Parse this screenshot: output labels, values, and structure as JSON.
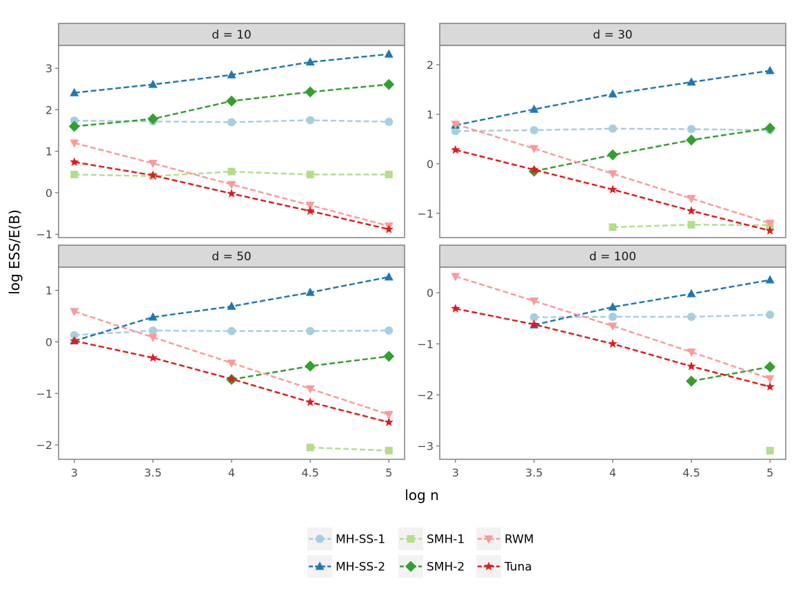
{
  "chart_data": {
    "type": "line",
    "xlabel": "log n",
    "ylabel": "log ESS/E(B)",
    "x": [
      3,
      3.5,
      4,
      4.5,
      5
    ],
    "x_tick_labels": [
      "3",
      "3.5",
      "4",
      "4.5",
      "5"
    ],
    "legend": {
      "position": "bottom",
      "entries": [
        "MH-SS-1",
        "MH-SS-2",
        "SMH-1",
        "SMH-2",
        "RWM",
        "Tuna"
      ]
    },
    "series_styles": [
      {
        "name": "MH-SS-1",
        "color": "#a6cee3",
        "marker": "circle"
      },
      {
        "name": "MH-SS-2",
        "color": "#1f78b4",
        "marker": "triangle-up"
      },
      {
        "name": "SMH-1",
        "color": "#b2df8a",
        "marker": "square"
      },
      {
        "name": "SMH-2",
        "color": "#33a02c",
        "marker": "diamond"
      },
      {
        "name": "RWM",
        "color": "#fb9a99",
        "marker": "triangle-down"
      },
      {
        "name": "Tuna",
        "color": "#e31a1c",
        "marker": "star"
      }
    ],
    "panels": [
      {
        "strip": "d = 10",
        "ylim": [
          -1.08,
          3.55
        ],
        "yticks": [
          -1,
          0,
          1,
          2,
          3
        ],
        "y_tick_labels": [
          "−1",
          "0",
          "1",
          "2",
          "3"
        ],
        "series": [
          {
            "name": "MH-SS-1",
            "values": [
              1.74,
              1.72,
              1.7,
              1.75,
              1.71
            ]
          },
          {
            "name": "MH-SS-2",
            "values": [
              2.41,
              2.61,
              2.84,
              3.15,
              3.34
            ]
          },
          {
            "name": "SMH-1",
            "values": [
              0.44,
              0.4,
              0.51,
              0.44,
              0.44
            ]
          },
          {
            "name": "SMH-2",
            "values": [
              1.6,
              1.78,
              2.21,
              2.43,
              2.61
            ]
          },
          {
            "name": "RWM",
            "values": [
              1.2,
              0.71,
              0.2,
              -0.3,
              -0.8
            ]
          },
          {
            "name": "Tuna",
            "values": [
              0.74,
              0.42,
              -0.02,
              -0.44,
              -0.88
            ]
          }
        ]
      },
      {
        "strip": "d = 30",
        "ylim": [
          -1.49,
          2.39
        ],
        "yticks": [
          -1,
          0,
          1,
          2
        ],
        "y_tick_labels": [
          "−1",
          "0",
          "1",
          "2"
        ],
        "series": [
          {
            "name": "MH-SS-1",
            "values": [
              0.66,
              0.68,
              0.71,
              0.7,
              0.68
            ]
          },
          {
            "name": "MH-SS-2",
            "values": [
              0.78,
              1.1,
              1.41,
              1.65,
              1.88
            ]
          },
          {
            "name": "SMH-1",
            "values": [
              null,
              null,
              -1.28,
              -1.23,
              -1.24
            ]
          },
          {
            "name": "SMH-2",
            "values": [
              null,
              -0.15,
              0.18,
              0.48,
              0.72
            ]
          },
          {
            "name": "RWM",
            "values": [
              0.8,
              0.31,
              -0.2,
              -0.7,
              -1.2
            ]
          },
          {
            "name": "Tuna",
            "values": [
              0.28,
              -0.12,
              -0.52,
              -0.95,
              -1.35
            ]
          }
        ]
      },
      {
        "strip": "d = 50",
        "ylim": [
          -2.28,
          1.45
        ],
        "yticks": [
          -2,
          -1,
          0,
          1
        ],
        "y_tick_labels": [
          "−2",
          "−1",
          "0",
          "1"
        ],
        "series": [
          {
            "name": "MH-SS-1",
            "values": [
              0.13,
              0.22,
              0.21,
              0.21,
              0.22
            ]
          },
          {
            "name": "MH-SS-2",
            "values": [
              0.02,
              0.48,
              0.69,
              0.96,
              1.26
            ]
          },
          {
            "name": "SMH-1",
            "values": [
              null,
              null,
              null,
              -2.05,
              -2.11
            ]
          },
          {
            "name": "SMH-2",
            "values": [
              null,
              null,
              -0.73,
              -0.47,
              -0.28
            ]
          },
          {
            "name": "RWM",
            "values": [
              0.59,
              0.09,
              -0.41,
              -0.91,
              -1.41
            ]
          },
          {
            "name": "Tuna",
            "values": [
              0.02,
              -0.31,
              -0.72,
              -1.17,
              -1.56
            ]
          }
        ]
      },
      {
        "strip": "d = 100",
        "ylim": [
          -3.26,
          0.5
        ],
        "yticks": [
          -3,
          -2,
          -1,
          0
        ],
        "y_tick_labels": [
          "−3",
          "−2",
          "−1",
          "0"
        ],
        "series": [
          {
            "name": "MH-SS-1",
            "values": [
              null,
              -0.48,
              -0.47,
              -0.47,
              -0.43
            ]
          },
          {
            "name": "MH-SS-2",
            "values": [
              null,
              -0.63,
              -0.28,
              -0.02,
              0.25
            ]
          },
          {
            "name": "SMH-1",
            "values": [
              null,
              null,
              null,
              null,
              -3.09
            ]
          },
          {
            "name": "SMH-2",
            "values": [
              null,
              null,
              null,
              -1.73,
              -1.45
            ]
          },
          {
            "name": "RWM",
            "values": [
              0.32,
              -0.16,
              -0.65,
              -1.16,
              -1.68
            ]
          },
          {
            "name": "Tuna",
            "values": [
              -0.31,
              -0.62,
              -1.0,
              -1.44,
              -1.84
            ]
          }
        ]
      }
    ]
  }
}
